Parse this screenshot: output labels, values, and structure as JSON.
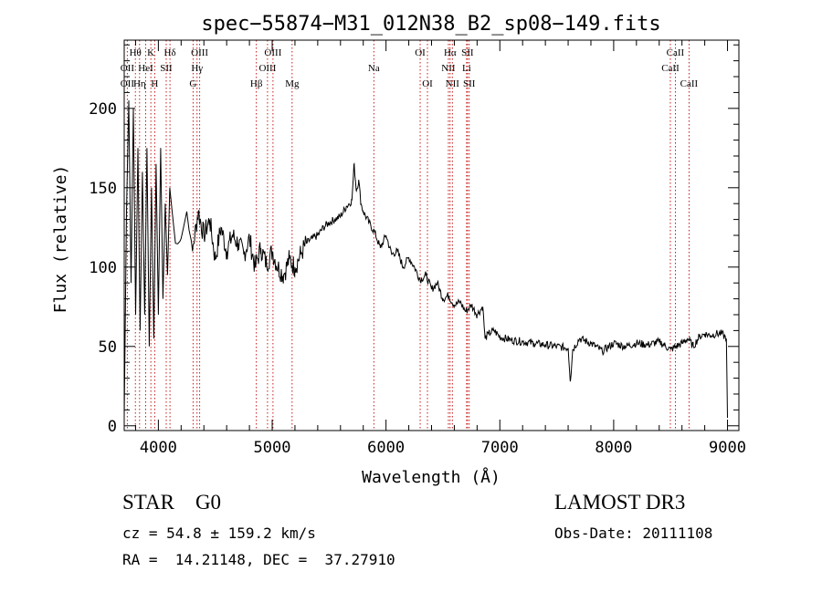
{
  "chart_data": {
    "type": "line",
    "title": "spec−55874−M31_012N38_B2_sp08−149.fits",
    "xlabel": "Wavelength (Å)",
    "ylabel": "Flux (relative)",
    "xlim": [
      3700,
      9100
    ],
    "ylim": [
      -3,
      243
    ],
    "xticks": [
      4000,
      5000,
      6000,
      7000,
      8000,
      9000
    ],
    "yticks": [
      0,
      50,
      100,
      150,
      200
    ],
    "xtick_labels": [
      "4000",
      "5000",
      "6000",
      "7000",
      "8000",
      "9000"
    ],
    "ytick_labels": [
      "0",
      "50",
      "100",
      "150",
      "200"
    ],
    "grid": false,
    "series": [
      {
        "name": "flux",
        "x": [
          3700,
          3720,
          3740,
          3760,
          3780,
          3800,
          3820,
          3840,
          3860,
          3880,
          3900,
          3920,
          3940,
          3960,
          3980,
          4000,
          4020,
          4040,
          4060,
          4080,
          4100,
          4150,
          4200,
          4250,
          4300,
          4350,
          4400,
          4450,
          4500,
          4550,
          4600,
          4650,
          4700,
          4750,
          4800,
          4850,
          4900,
          4950,
          5000,
          5050,
          5100,
          5150,
          5200,
          5250,
          5300,
          5350,
          5400,
          5450,
          5500,
          5550,
          5600,
          5650,
          5700,
          5720,
          5740,
          5760,
          5780,
          5800,
          5850,
          5900,
          5950,
          6000,
          6050,
          6100,
          6150,
          6200,
          6250,
          6300,
          6350,
          6400,
          6450,
          6500,
          6550,
          6600,
          6650,
          6700,
          6750,
          6800,
          6850,
          6870,
          6900,
          6950,
          7000,
          7100,
          7200,
          7300,
          7400,
          7500,
          7600,
          7620,
          7640,
          7700,
          7800,
          7900,
          8000,
          8100,
          8200,
          8300,
          8400,
          8500,
          8600,
          8650,
          8700,
          8750,
          8800,
          8850,
          8900,
          8950,
          8990,
          9000
        ],
        "y": [
          5,
          135,
          205,
          90,
          200,
          70,
          175,
          60,
          160,
          70,
          175,
          50,
          150,
          55,
          165,
          70,
          175,
          80,
          140,
          95,
          150,
          115,
          118,
          135,
          110,
          135,
          120,
          130,
          105,
          125,
          110,
          120,
          115,
          108,
          118,
          100,
          112,
          102,
          110,
          100,
          95,
          105,
          100,
          108,
          115,
          118,
          120,
          125,
          128,
          130,
          132,
          138,
          142,
          165,
          148,
          155,
          140,
          135,
          128,
          122,
          112,
          120,
          108,
          110,
          100,
          106,
          100,
          92,
          95,
          86,
          90,
          80,
          82,
          76,
          78,
          72,
          76,
          70,
          75,
          55,
          58,
          60,
          56,
          54,
          53,
          52,
          51,
          50,
          49,
          28,
          48,
          55,
          52,
          47,
          52,
          50,
          52,
          51,
          53,
          48,
          52,
          55,
          50,
          56,
          58,
          57,
          58,
          58,
          55,
          5
        ]
      }
    ],
    "line_markers": [
      {
        "label": "Hθ",
        "x": 3798,
        "row": 1
      },
      {
        "label": "OII",
        "x": 3727,
        "row": 2
      },
      {
        "label": "OII",
        "x": 3727,
        "row": 3
      },
      {
        "label": "K",
        "x": 3934,
        "row": 1
      },
      {
        "label": "HeI",
        "x": 3889,
        "row": 2
      },
      {
        "label": "Hη",
        "x": 3835,
        "row": 3
      },
      {
        "label": "SII",
        "x": 4069,
        "row": 2
      },
      {
        "label": "H",
        "x": 3968,
        "row": 3
      },
      {
        "label": "Hδ",
        "x": 4102,
        "row": 1
      },
      {
        "label": "OIII",
        "x": 4363,
        "row": 1
      },
      {
        "label": "Hγ",
        "x": 4340,
        "row": 2
      },
      {
        "label": "G",
        "x": 4305,
        "row": 3
      },
      {
        "label": "OIII",
        "x": 5007,
        "row": 1
      },
      {
        "label": "OIII",
        "x": 4959,
        "row": 2
      },
      {
        "label": "Hβ",
        "x": 4861,
        "row": 3
      },
      {
        "label": "Mg",
        "x": 5175,
        "row": 3
      },
      {
        "label": "Na",
        "x": 5893,
        "row": 2
      },
      {
        "label": "OI",
        "x": 6300,
        "row": 1
      },
      {
        "label": "OI",
        "x": 6364,
        "row": 3
      },
      {
        "label": "Hα",
        "x": 6563,
        "row": 1
      },
      {
        "label": "NII",
        "x": 6548,
        "row": 2
      },
      {
        "label": "NII",
        "x": 6583,
        "row": 3
      },
      {
        "label": "SII",
        "x": 6716,
        "row": 1
      },
      {
        "label": "Li",
        "x": 6708,
        "row": 2
      },
      {
        "label": "SII",
        "x": 6731,
        "row": 3
      },
      {
        "label": "CaII",
        "x": 8542,
        "row": 1
      },
      {
        "label": "CaII",
        "x": 8498,
        "row": 2
      },
      {
        "label": "CaII",
        "x": 8662,
        "row": 3
      }
    ]
  },
  "info": {
    "object_class": "STAR    G0",
    "survey": "LAMOST DR3",
    "redshift": "cz = 54.8 ± 159.2 km/s",
    "obs_date": "Obs-Date: 20111108",
    "coords": "RA =  14.21148, DEC =  37.27910"
  }
}
